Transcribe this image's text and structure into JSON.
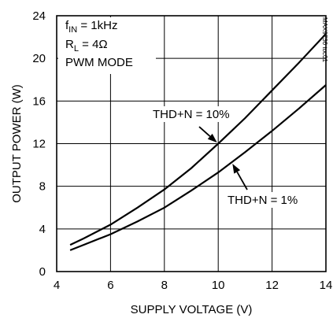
{
  "chart_data": {
    "type": "line",
    "title": "",
    "xlabel": "SUPPLY VOLTAGE (V)",
    "ylabel": "OUTPUT POWER (W)",
    "xlim": [
      4,
      14
    ],
    "ylim": [
      0,
      24
    ],
    "xticks": [
      "4",
      "6",
      "8",
      "10",
      "12",
      "14"
    ],
    "yticks": [
      "0",
      "4",
      "8",
      "12",
      "16",
      "20",
      "24"
    ],
    "grid": true,
    "conditions": {
      "fin_main": "f",
      "fin_sub": "IN",
      "fin_value": " = 1kHz",
      "rl_main": "R",
      "rl_sub": "L",
      "rl_value": " = 4Ω",
      "mode": "PWM MODE"
    },
    "series": [
      {
        "name": "THD+N = 10%",
        "x": [
          4.5,
          5,
          6,
          7,
          8,
          9,
          10,
          11,
          12,
          13,
          14
        ],
        "y": [
          2.5,
          3.1,
          4.4,
          6.0,
          7.7,
          9.7,
          12.0,
          14.4,
          17.0,
          19.6,
          22.3
        ]
      },
      {
        "name": "THD+N = 1%",
        "x": [
          4.5,
          5,
          6,
          7,
          8,
          9,
          10,
          11,
          12,
          13,
          14
        ],
        "y": [
          2.0,
          2.5,
          3.5,
          4.7,
          6.0,
          7.6,
          9.3,
          11.2,
          13.2,
          15.3,
          17.5
        ]
      }
    ],
    "annotations": [
      {
        "text": "THD+N = 10%",
        "series": 0,
        "arrow_x": 10.0
      },
      {
        "text": "THD+N = 1%",
        "series": 1,
        "arrow_x": 10.5
      }
    ],
    "figure_code": "MAX9736 toc01"
  }
}
